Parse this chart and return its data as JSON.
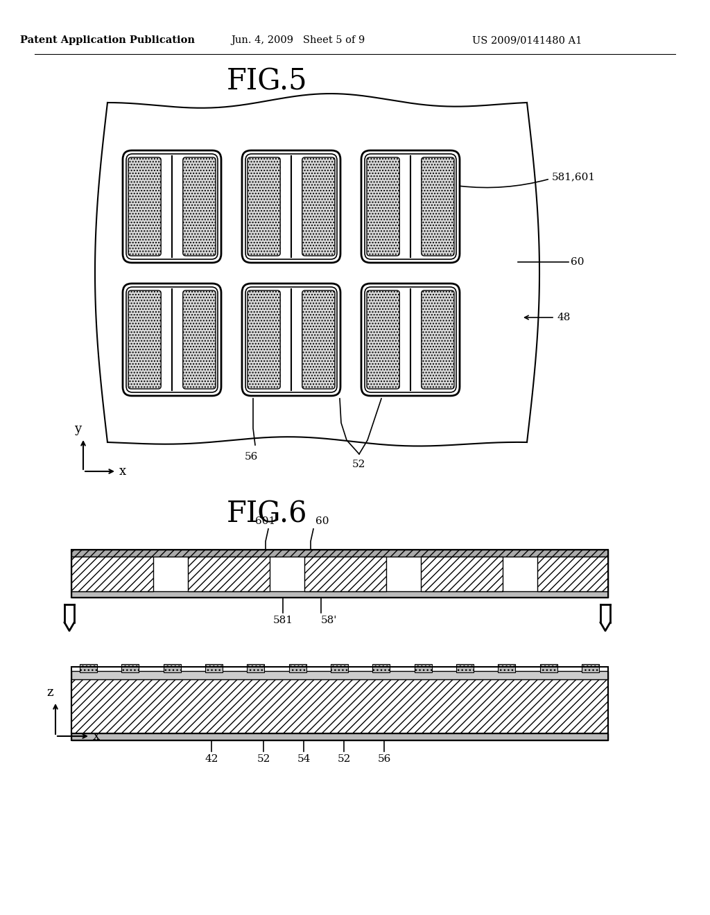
{
  "bg_color": "#ffffff",
  "header_left": "Patent Application Publication",
  "header_mid": "Jun. 4, 2009   Sheet 5 of 9",
  "header_right": "US 2009/0141480 A1",
  "fig5_title": "FIG.5",
  "fig6_title": "FIG.6",
  "lbl_581_601": "581,601",
  "lbl_60a": "60",
  "lbl_48": "48",
  "lbl_56a": "56",
  "lbl_52a": "52",
  "lbl_601": "601",
  "lbl_60b": "60",
  "lbl_581": "581",
  "lbl_58p": "58'",
  "lbl_42": "42",
  "lbl_52b": "52",
  "lbl_54": "54",
  "lbl_52c": "52",
  "lbl_56b": "56",
  "axis_y": "y",
  "axis_x1": "x",
  "axis_z": "z",
  "axis_x2": "x",
  "lc": "#000000"
}
